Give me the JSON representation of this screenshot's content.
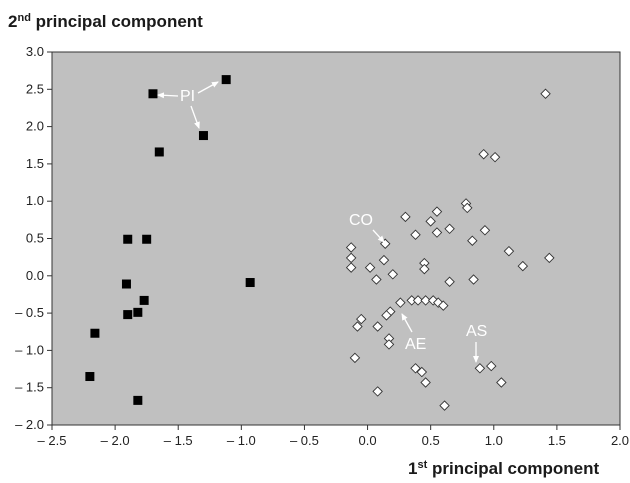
{
  "chart_data": {
    "type": "scatter",
    "title": "",
    "ylabel": {
      "prefix": "2",
      "sup": "nd",
      "rest": " principal component"
    },
    "xlabel": {
      "prefix": "1",
      "sup": "st",
      "rest": " principal component"
    },
    "xlim": [
      -2.5,
      2.0
    ],
    "ylim": [
      -2.0,
      3.0
    ],
    "xticks": [
      -2.5,
      -2.0,
      -1.5,
      -1.0,
      -0.5,
      0.0,
      0.5,
      1.0,
      1.5,
      2.0
    ],
    "yticks": [
      -2.0,
      -1.5,
      -1.0,
      -0.5,
      0.0,
      0.5,
      1.0,
      1.5,
      2.0,
      2.5,
      3.0
    ],
    "xtick_labels": [
      "– 2.5",
      "– 2.0",
      "– 1.5",
      "– 1.0",
      "– 0.5",
      "0.0",
      "0.5",
      "1.0",
      "1.5",
      "2.0"
    ],
    "ytick_labels": [
      "– 2.0",
      "– 1.5",
      "– 1.0",
      "– 0.5",
      "0.0",
      "0.5",
      "1.0",
      "1.5",
      "2.0",
      "2.5",
      "3.0"
    ],
    "grid": false,
    "plot_background": "#c0c0c0",
    "series": [
      {
        "marker": "filled-square",
        "color": "#000000",
        "points": [
          [
            -1.7,
            2.44
          ],
          [
            -1.12,
            2.63
          ],
          [
            -1.3,
            1.88
          ],
          [
            -1.65,
            1.66
          ],
          [
            -1.9,
            0.49
          ],
          [
            -1.75,
            0.49
          ],
          [
            -1.91,
            -0.11
          ],
          [
            -0.93,
            -0.09
          ],
          [
            -1.77,
            -0.33
          ],
          [
            -1.9,
            -0.52
          ],
          [
            -1.82,
            -0.49
          ],
          [
            -2.16,
            -0.77
          ],
          [
            -2.2,
            -1.35
          ],
          [
            -1.82,
            -1.67
          ]
        ]
      },
      {
        "marker": "open-diamond",
        "color": "#ffffff",
        "points": [
          [
            1.41,
            2.44
          ],
          [
            0.92,
            1.63
          ],
          [
            1.01,
            1.59
          ],
          [
            0.78,
            0.97
          ],
          [
            0.79,
            0.91
          ],
          [
            0.55,
            0.86
          ],
          [
            0.3,
            0.79
          ],
          [
            0.5,
            0.73
          ],
          [
            0.65,
            0.63
          ],
          [
            0.93,
            0.61
          ],
          [
            0.55,
            0.58
          ],
          [
            0.38,
            0.55
          ],
          [
            0.83,
            0.47
          ],
          [
            0.14,
            0.43
          ],
          [
            -0.13,
            0.38
          ],
          [
            1.12,
            0.33
          ],
          [
            -0.13,
            0.24
          ],
          [
            1.44,
            0.24
          ],
          [
            0.13,
            0.21
          ],
          [
            0.45,
            0.17
          ],
          [
            1.23,
            0.13
          ],
          [
            -0.13,
            0.11
          ],
          [
            0.02,
            0.11
          ],
          [
            0.45,
            0.09
          ],
          [
            0.2,
            0.02
          ],
          [
            0.07,
            -0.05
          ],
          [
            0.84,
            -0.05
          ],
          [
            0.65,
            -0.08
          ],
          [
            0.26,
            -0.36
          ],
          [
            0.35,
            -0.33
          ],
          [
            0.4,
            -0.33
          ],
          [
            0.46,
            -0.33
          ],
          [
            0.52,
            -0.33
          ],
          [
            0.56,
            -0.36
          ],
          [
            0.6,
            -0.4
          ],
          [
            -0.05,
            -0.58
          ],
          [
            0.18,
            -0.48
          ],
          [
            0.15,
            -0.53
          ],
          [
            -0.08,
            -0.68
          ],
          [
            0.08,
            -0.68
          ],
          [
            0.17,
            -0.84
          ],
          [
            0.17,
            -0.92
          ],
          [
            -0.1,
            -1.1
          ],
          [
            0.38,
            -1.24
          ],
          [
            0.43,
            -1.29
          ],
          [
            0.89,
            -1.24
          ],
          [
            0.98,
            -1.21
          ],
          [
            0.46,
            -1.43
          ],
          [
            1.06,
            -1.43
          ],
          [
            0.08,
            -1.55
          ],
          [
            0.61,
            -1.74
          ]
        ]
      }
    ],
    "annotations": [
      {
        "text": "PI"
      },
      {
        "text": "CO"
      },
      {
        "text": "AE"
      },
      {
        "text": "AS"
      }
    ]
  }
}
